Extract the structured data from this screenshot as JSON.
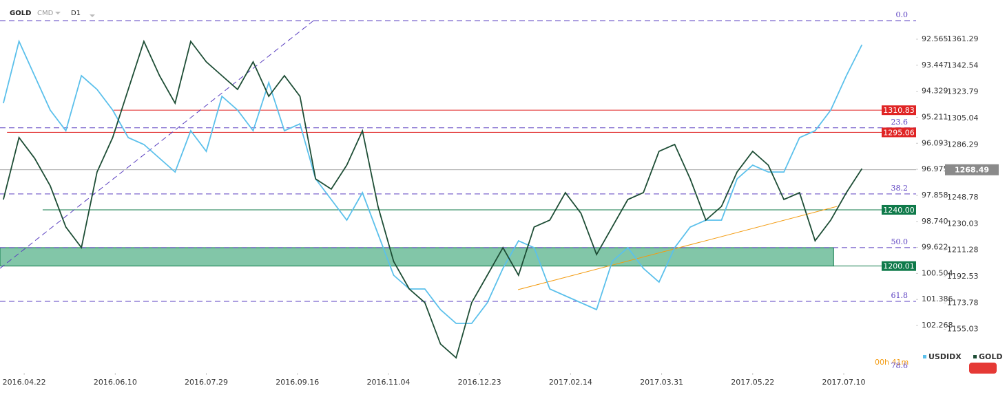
{
  "chart_data": {
    "type": "line",
    "header": {
      "symbol": "GOLD",
      "market": "CMD",
      "timeframe": "D1"
    },
    "countdown": "00h 41m",
    "x": [
      -8,
      -2,
      4,
      10,
      16,
      22,
      28,
      34,
      40,
      46,
      52,
      58,
      64,
      70,
      76,
      82,
      88,
      94,
      100,
      106,
      112,
      118,
      124,
      130,
      136,
      142,
      148,
      154,
      160,
      166,
      172,
      178,
      184,
      190,
      196,
      202,
      208,
      214,
      220,
      226,
      232,
      238,
      244,
      250,
      256,
      262,
      268,
      274,
      280,
      286,
      292,
      298,
      304,
      310,
      316,
      322
    ],
    "xlim": [
      -9.3,
      342.8
    ],
    "xticks": [
      {
        "value": 0,
        "label": "2016.04.22"
      },
      {
        "value": 35,
        "label": "2016.06.10"
      },
      {
        "value": 70,
        "label": "2016.07.29"
      },
      {
        "value": 105,
        "label": "2016.09.16"
      },
      {
        "value": 140,
        "label": "2016.11.04"
      },
      {
        "value": 175,
        "label": "2016.12.23"
      },
      {
        "value": 210,
        "label": "2017.02.14"
      },
      {
        "value": 245,
        "label": "2017.03.31"
      },
      {
        "value": 280,
        "label": "2017.05.22"
      },
      {
        "value": 315,
        "label": "2017.07.10"
      }
    ],
    "ylim": [
      1125.0,
      1389.2
    ],
    "yticks": [
      1361.29,
      1342.54,
      1323.79,
      1305.04,
      1286.29,
      1248.78,
      1230.03,
      1211.28,
      1192.53,
      1173.78,
      1155.03
    ],
    "y2lim": [
      91.236,
      103.83
    ],
    "y2_inverted": true,
    "y2ticks": [
      92.565,
      93.447,
      94.329,
      95.211,
      96.093,
      96.975,
      97.858,
      {
        "value": 98.74,
        "label": "98.740"
      },
      99.622,
      100.504,
      101.386,
      102.268
    ],
    "series": [
      {
        "name": "USDIDX",
        "color": "#5bc0eb",
        "axis": "y2",
        "values": [
          94.734,
          92.635,
          93.801,
          94.967,
          95.667,
          93.801,
          94.268,
          94.967,
          95.9,
          96.134,
          96.6,
          97.067,
          95.667,
          96.367,
          94.501,
          94.967,
          95.667,
          94.034,
          95.667,
          95.434,
          97.3,
          98.0,
          98.699,
          97.766,
          99.166,
          100.565,
          101.032,
          101.032,
          101.732,
          102.198,
          102.198,
          101.498,
          100.332,
          99.399,
          99.632,
          101.032,
          101.265,
          101.498,
          101.732,
          100.099,
          99.632,
          100.332,
          100.799,
          99.632,
          98.933,
          98.699,
          98.699,
          97.3,
          96.833,
          97.067,
          97.067,
          95.9,
          95.667,
          94.967,
          93.801,
          92.752
        ]
      },
      {
        "name": "GOLD",
        "color": "#1d4d35",
        "values": [
          1247.3,
          1291.4,
          1276.7,
          1257.1,
          1227.8,
          1213.1,
          1266.9,
          1291.4,
          1325.6,
          1359.8,
          1335.4,
          1315.8,
          1359.8,
          1345.2,
          1335.4,
          1325.6,
          1345.2,
          1320.7,
          1335.4,
          1320.7,
          1262.0,
          1254.7,
          1271.8,
          1296.2,
          1242.4,
          1203.3,
          1183.7,
          1174.0,
          1144.6,
          1134.8,
          1174.0,
          1193.5,
          1213.1,
          1193.5,
          1227.8,
          1232.7,
          1252.2,
          1237.5,
          1208.2,
          1227.8,
          1247.3,
          1252.2,
          1281.6,
          1286.5,
          1262.0,
          1232.7,
          1242.4,
          1266.9,
          1281.6,
          1271.8,
          1247.3,
          1252.2,
          1218.0,
          1232.7,
          1252.2,
          1269.3
        ]
      }
    ],
    "levels": [
      {
        "value": 1310.83,
        "label": "1310.83",
        "color": "#e02424",
        "start": 34.4
      },
      {
        "value": 1295.06,
        "label": "1295.06",
        "color": "#e02424",
        "start": -6.6
      },
      {
        "value": 1240,
        "label": "1240.00",
        "color": "#0f7a4a",
        "start": 7.1
      },
      {
        "value": 1200.01,
        "label": "1200.01",
        "color": "#0f7a4a",
        "start": 311.1
      }
    ],
    "current": {
      "value": 1268.49,
      "label": "1268.49",
      "color": "#8a8a8a"
    },
    "zone": {
      "range": [
        1200.01,
        1213.1
      ],
      "end": 311.1,
      "color": "#3fa77a"
    },
    "fib": {
      "color": "#5a3fc0",
      "levels": [
        {
          "label": "0.0",
          "value": 1374.5
        },
        {
          "label": "23.6",
          "value": 1298.3
        },
        {
          "label": "38.2",
          "value": 1251.3
        },
        {
          "label": "50.0",
          "value": 1213.1
        },
        {
          "label": "61.8",
          "value": 1174.9
        },
        {
          "label": "78.6",
          "value": 1120.6
        }
      ]
    },
    "trendlines": [
      {
        "color": "#5a3fc0",
        "dashed": true,
        "x": [
          -9.27,
          111.2
        ],
        "y": [
          1198.4,
          1374.5
        ]
      },
      {
        "color": "#f39c12",
        "dashed": false,
        "x": [
          189.8,
          312.4
        ],
        "y": [
          1183.2,
          1242.4
        ]
      }
    ]
  }
}
